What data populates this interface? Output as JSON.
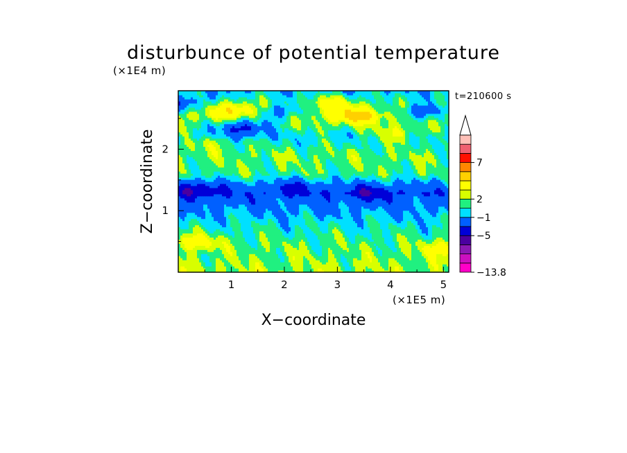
{
  "chart_data": {
    "type": "heatmap",
    "title": "disturbunce of potential temperature",
    "time_label": "t=210600 s",
    "xlabel": "X−coordinate",
    "ylabel": "Z−coordinate",
    "x_unit_label": "(×1E5 m)",
    "y_unit_label": "(×1E4 m)",
    "xlim": [
      0,
      5.1
    ],
    "ylim": [
      0,
      2.95
    ],
    "x_ticks": [
      "1",
      "2",
      "3",
      "4",
      "5"
    ],
    "y_ticks": [
      "1",
      "2"
    ],
    "colorbar_labels": [
      "7",
      "2",
      "−1",
      "−5",
      "−13.8"
    ],
    "colorbar": {
      "min": -13.8,
      "extend": "max",
      "colors": [
        "#ff00c8",
        "#cc10c0",
        "#8c18b4",
        "#4b00a0",
        "#0000d8",
        "#0060ff",
        "#00e0ff",
        "#20f080",
        "#d8ff00",
        "#ffff00",
        "#ffd000",
        "#ff8800",
        "#ff1000",
        "#f06070",
        "#ffc0b8"
      ]
    },
    "profile": [
      {
        "z": 0.0,
        "value": 1.2
      },
      {
        "z": 0.5,
        "value": 0.5
      },
      {
        "z": 0.8,
        "value": -0.3
      },
      {
        "z": 1.05,
        "value": -1.4
      },
      {
        "z": 1.3,
        "value": -2.6
      },
      {
        "z": 1.6,
        "value": 0.4
      },
      {
        "z": 1.9,
        "value": 0.8
      },
      {
        "z": 2.2,
        "value": -0.4
      },
      {
        "z": 2.55,
        "value": 1.5
      },
      {
        "z": 2.95,
        "value": -0.8
      }
    ],
    "features": [
      {
        "x": 1.1,
        "z": 2.65,
        "amp": 2.8
      },
      {
        "x": 3.35,
        "z": 2.55,
        "amp": 3.4
      },
      {
        "x": 2.9,
        "z": 2.75,
        "amp": 2.4
      },
      {
        "x": 4.1,
        "z": 2.25,
        "amp": 2.0
      },
      {
        "x": 0.65,
        "z": 2.1,
        "amp": 1.3
      },
      {
        "x": 1.2,
        "z": 2.35,
        "amp": -4.0
      },
      {
        "x": 1.9,
        "z": 2.6,
        "amp": -2.8
      },
      {
        "x": 4.6,
        "z": 2.6,
        "amp": -3.2
      },
      {
        "x": 0.05,
        "z": 2.75,
        "amp": -2.5
      },
      {
        "x": 0.35,
        "z": 1.35,
        "amp": -3.0
      },
      {
        "x": 3.6,
        "z": 1.3,
        "amp": -2.3
      },
      {
        "x": 2.2,
        "z": 1.4,
        "amp": -1.6
      },
      {
        "x": 0.3,
        "z": 0.5,
        "amp": 2.5
      },
      {
        "x": 5.0,
        "z": 0.4,
        "amp": 2.0
      }
    ]
  }
}
